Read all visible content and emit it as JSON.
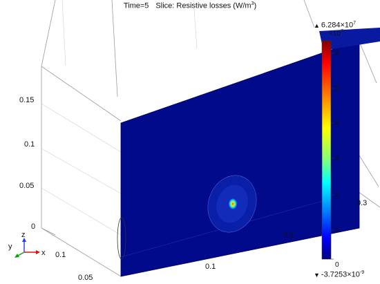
{
  "plot": {
    "time_label": "Time=5",
    "slice_label": "Slice: Resistive losses (W/m",
    "slice_unit_exp": "3",
    "slice_close": ")"
  },
  "axes": {
    "z_ticks": [
      "0.15",
      "0.1",
      "0.05",
      "0"
    ],
    "x_ticks": [
      "0.1",
      "0.2",
      "0.3"
    ],
    "y_ticks": [
      "0.1",
      "0.05"
    ],
    "triad": {
      "y": "y",
      "z": "z",
      "x": "x"
    }
  },
  "colorbar": {
    "max_label": "6.284×10",
    "max_exp": "7",
    "scale_label": "×10",
    "scale_exp": "7",
    "min_label": "-3.7253×10",
    "min_exp": "-9",
    "ticks": [
      "6",
      "5",
      "4",
      "3",
      "2",
      "1",
      "0"
    ],
    "colors": [
      "#7f0000",
      "#ff0000",
      "#ff7f00",
      "#ffff00",
      "#7fff7f",
      "#00ffff",
      "#007fff",
      "#0000ff",
      "#00007f"
    ]
  }
}
